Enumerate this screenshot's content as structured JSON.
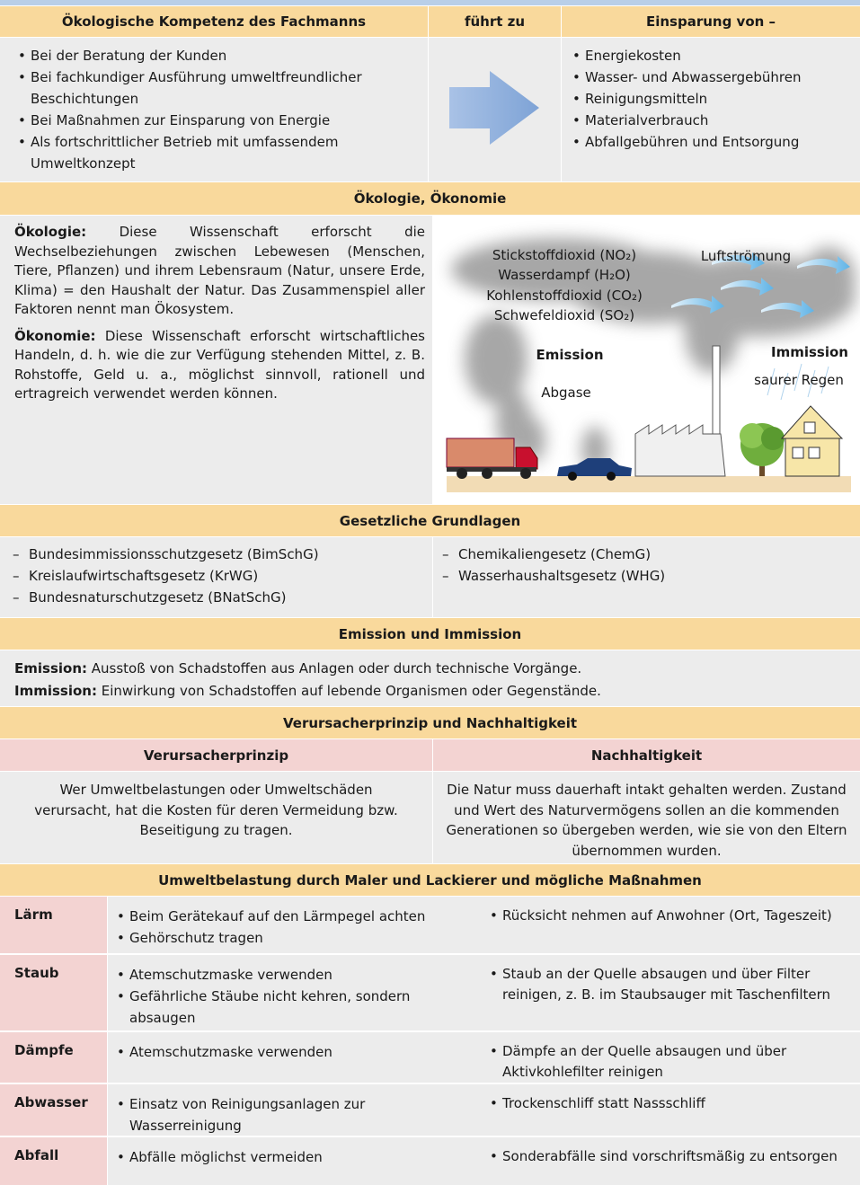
{
  "kompetenz": {
    "headers": [
      "Ökologische Kompetenz des Fachmanns",
      "führt zu",
      "Einsparung von –"
    ],
    "left_items": [
      "Bei der Beratung der Kunden",
      "Bei fachkundiger Ausführung umweltfreundlicher Beschichtungen",
      "Bei Maßnahmen zur Einsparung von Energie",
      "Als fortschrittlicher Betrieb mit umfassendem Umweltkonzept"
    ],
    "right_items": [
      "Energiekosten",
      "Wasser- und Abwassergebühren",
      "Reinigungsmitteln",
      "Materialverbrauch",
      "Abfallgebühren und Entsorgung"
    ]
  },
  "oekologie": {
    "title": "Ökologie, Ökonomie",
    "paragraphs": [
      {
        "term": "Ökologie:",
        "text": "Diese Wissenschaft erforscht die Wechselbeziehungen zwischen Lebewesen (Menschen, Tiere, Pflanzen) und ihrem Lebensraum (Natur, unsere Erde, Klima) = den Haushalt der Natur. Das Zusammenspiel aller Faktoren nennt man Ökosystem."
      },
      {
        "term": "Ökonomie:",
        "text": "Diese Wissenschaft erforscht wirtschaftliches Handeln, d. h. wie die zur Verfügung stehenden Mittel, z. B. Rohstoffe, Geld u. a., möglichst sinnvoll, rationell und ertragreich verwendet werden können."
      }
    ],
    "illustration": {
      "gases": [
        "Stickstoffdioxid (NO₂)",
        "Wasserdampf (H₂O)",
        "Kohlenstoffdioxid (CO₂)",
        "Schwefeldioxid (SO₂)"
      ],
      "airflow": "Luftströmung",
      "emission": "Emission",
      "exhaust": "Abgase",
      "immission": "Immission",
      "acid_rain": "saurer Regen"
    }
  },
  "grundlagen": {
    "title": "Gesetzliche Grundlagen",
    "left_items": [
      "Bundesimmissionsschutzgesetz (BimSchG)",
      "Kreislaufwirtschaftsgesetz (KrWG)",
      "Bundesnaturschutzgesetz (BNatSchG)"
    ],
    "right_items": [
      "Chemikaliengesetz (ChemG)",
      "Wasserhaushaltsgesetz (WHG)"
    ]
  },
  "emission": {
    "title": "Emission und Immission",
    "paragraphs": [
      {
        "term": "Emission:",
        "text": "Ausstoß von Schadstoffen aus Anlagen oder durch technische Vorgänge."
      },
      {
        "term": "Immission:",
        "text": "Einwirkung von Schadstoffen auf lebende Organismen oder Gegenstände."
      }
    ]
  },
  "prinzip": {
    "title": "Verursacherprinzip und Nachhaltigkeit",
    "columns": [
      {
        "heading": "Verursacherprinzip",
        "text": "Wer Umweltbelastungen oder Umweltschäden verursacht, hat die Kosten für deren Vermeidung bzw. Beseitigung zu tragen."
      },
      {
        "heading": "Nachhaltigkeit",
        "text": "Die Natur muss dauerhaft intakt gehalten werden. Zustand und Wert des Naturvermögens sollen an die kommenden Generationen so übergeben werden, wie sie von den Eltern übernommen wurden."
      }
    ]
  },
  "umwelt": {
    "title": "Umweltbelastung durch Maler und Lackierer und mögliche Maßnahmen",
    "rows": [
      {
        "label": "Lärm",
        "measures": [
          "Beim Gerätekauf auf den Lärmpegel achten",
          "Gehörschutz tragen"
        ],
        "solutions": [
          "Rücksicht nehmen auf Anwohner (Ort, Tageszeit)"
        ]
      },
      {
        "label": "Staub",
        "measures": [
          "Atemschutzmaske verwenden",
          "Gefährliche Stäube nicht kehren, sondern absaugen"
        ],
        "solutions": [
          "Staub an der Quelle absaugen und über Filter reinigen, z. B. im Staubsauger mit Taschenfiltern"
        ]
      },
      {
        "label": "Dämpfe",
        "measures": [
          "Atemschutzmaske verwenden"
        ],
        "solutions": [
          "Dämpfe an der Quelle absaugen und über Aktivkohlefilter reinigen"
        ]
      },
      {
        "label": "Abwasser",
        "measures": [
          "Einsatz von Reinigungsanlagen zur Wasserreinigung"
        ],
        "solutions": [
          "Trockenschliff statt Nassschliff"
        ]
      },
      {
        "label": "Abfall",
        "measures": [
          "Abfälle möglichst vermeiden"
        ],
        "solutions": [
          "Sonderabfälle sind vorschriftsmäßig zu entsorgen"
        ]
      }
    ]
  }
}
